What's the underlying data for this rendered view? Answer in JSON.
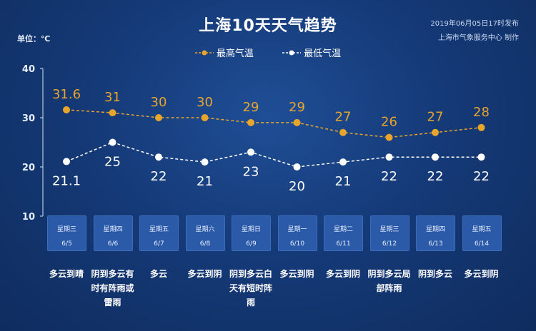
{
  "title": "上海10天天气趋势",
  "publish": {
    "line1": "2019年06月05日17时发布",
    "line2": "上海市气象服务中心 制作"
  },
  "unit_label": "单位：℃",
  "colors": {
    "high": "#e8a52c",
    "low": "#ffffff",
    "background": "#153a78",
    "day_box": "#2a5aa8"
  },
  "chart_data": {
    "type": "line",
    "title": "上海10天天气趋势",
    "ylabel": "单位：℃",
    "ylim": [
      10,
      40
    ],
    "yticks": [
      10,
      20,
      30,
      40
    ],
    "categories": [
      "6/5",
      "6/6",
      "6/7",
      "6/8",
      "6/9",
      "6/10",
      "6/11",
      "6/12",
      "6/13",
      "6/14"
    ],
    "series": [
      {
        "name": "最高气温",
        "values": [
          31.6,
          31,
          30,
          30,
          29,
          29,
          27,
          26,
          27,
          28
        ],
        "labels": [
          "31.6",
          "31",
          "30",
          "30",
          "29",
          "29",
          "27",
          "26",
          "27",
          "28"
        ]
      },
      {
        "name": "最低气温",
        "values": [
          21.1,
          25,
          22,
          21,
          23,
          20,
          21,
          22,
          22,
          22
        ],
        "labels": [
          "21.1",
          "25",
          "22",
          "21",
          "23",
          "20",
          "21",
          "22",
          "22",
          "22"
        ]
      }
    ],
    "grid": false,
    "legend": "top-center"
  },
  "days": [
    {
      "weekday": "星期三",
      "date": "6/5",
      "weather": "多云到晴"
    },
    {
      "weekday": "星期四",
      "date": "6/6",
      "weather": "阴到多云有时有阵雨或雷雨"
    },
    {
      "weekday": "星期五",
      "date": "6/7",
      "weather": "多云"
    },
    {
      "weekday": "星期六",
      "date": "6/8",
      "weather": "多云到阴"
    },
    {
      "weekday": "星期日",
      "date": "6/9",
      "weather": "阴到多云白天有短时阵雨"
    },
    {
      "weekday": "星期一",
      "date": "6/10",
      "weather": "多云到阴"
    },
    {
      "weekday": "星期二",
      "date": "6/11",
      "weather": "多云到阴"
    },
    {
      "weekday": "星期三",
      "date": "6/12",
      "weather": "阴到多云局部阵雨"
    },
    {
      "weekday": "星期四",
      "date": "6/13",
      "weather": "阴到多云"
    },
    {
      "weekday": "星期五",
      "date": "6/14",
      "weather": "多云到阴"
    }
  ]
}
